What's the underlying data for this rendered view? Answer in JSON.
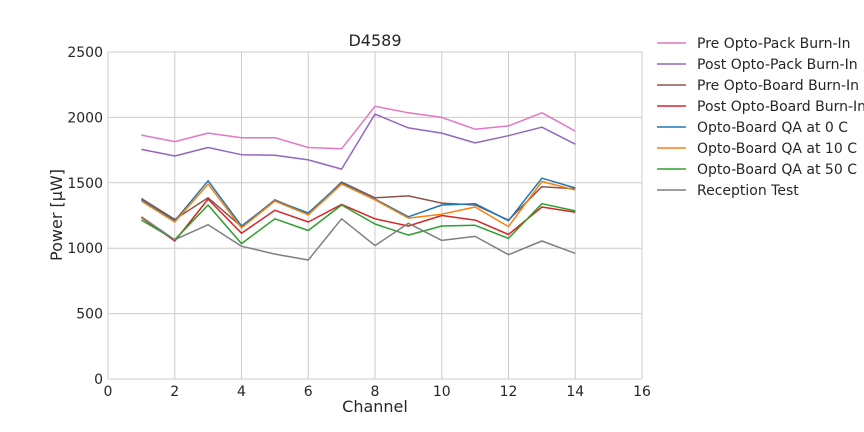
{
  "chart_data": {
    "type": "line",
    "title": "D4589",
    "xlabel": "Channel",
    "ylabel": "Power [μW]",
    "xlim": [
      0,
      16
    ],
    "ylim": [
      0,
      2500
    ],
    "xticks": [
      0,
      2,
      4,
      6,
      8,
      10,
      12,
      14,
      16
    ],
    "yticks": [
      0,
      500,
      1000,
      1500,
      2000,
      2500
    ],
    "grid": true,
    "legend_position": "outside-right",
    "x": [
      1,
      2,
      3,
      4,
      5,
      6,
      7,
      8,
      9,
      10,
      11,
      12,
      13,
      14
    ],
    "series": [
      {
        "name": "Pre Opto-Pack Burn-In",
        "color": "#e377c2",
        "values": [
          1865,
          1815,
          1880,
          1845,
          1845,
          1770,
          1760,
          2085,
          2035,
          2000,
          1910,
          1935,
          2035,
          1895
        ]
      },
      {
        "name": "Post Opto-Pack Burn-In",
        "color": "#9467bd",
        "values": [
          1755,
          1705,
          1770,
          1715,
          1710,
          1675,
          1605,
          2025,
          1920,
          1880,
          1805,
          1860,
          1925,
          1795
        ]
      },
      {
        "name": "Pre Opto-Board Burn-In",
        "color": "#8c564b",
        "values": [
          1380,
          1220,
          1385,
          1165,
          1370,
          1260,
          1505,
          1385,
          1400,
          1345,
          1330,
          1215,
          1470,
          1455
        ]
      },
      {
        "name": "Post Opto-Board Burn-In",
        "color": "#d62728",
        "values": [
          1235,
          1055,
          1375,
          1115,
          1290,
          1200,
          1335,
          1225,
          1170,
          1250,
          1215,
          1105,
          1315,
          1275
        ]
      },
      {
        "name": "Opto-Board QA at 0 C",
        "color": "#1f77b4",
        "values": [
          1370,
          1210,
          1515,
          1170,
          1365,
          1270,
          1500,
          1375,
          1240,
          1330,
          1340,
          1210,
          1535,
          1460
        ]
      },
      {
        "name": "Opto-Board QA at 10 C",
        "color": "#ff7f0e",
        "values": [
          1360,
          1200,
          1490,
          1155,
          1360,
          1255,
          1490,
          1370,
          1230,
          1260,
          1315,
          1165,
          1510,
          1445
        ]
      },
      {
        "name": "Opto-Board QA at 50 C",
        "color": "#2ca02c",
        "values": [
          1215,
          1065,
          1330,
          1035,
          1225,
          1135,
          1330,
          1185,
          1100,
          1170,
          1175,
          1075,
          1340,
          1285
        ]
      },
      {
        "name": "Reception Test",
        "color": "#7f7f7f",
        "values": [
          1240,
          1065,
          1180,
          1015,
          955,
          910,
          1225,
          1020,
          1190,
          1060,
          1090,
          950,
          1055,
          960
        ]
      }
    ]
  }
}
